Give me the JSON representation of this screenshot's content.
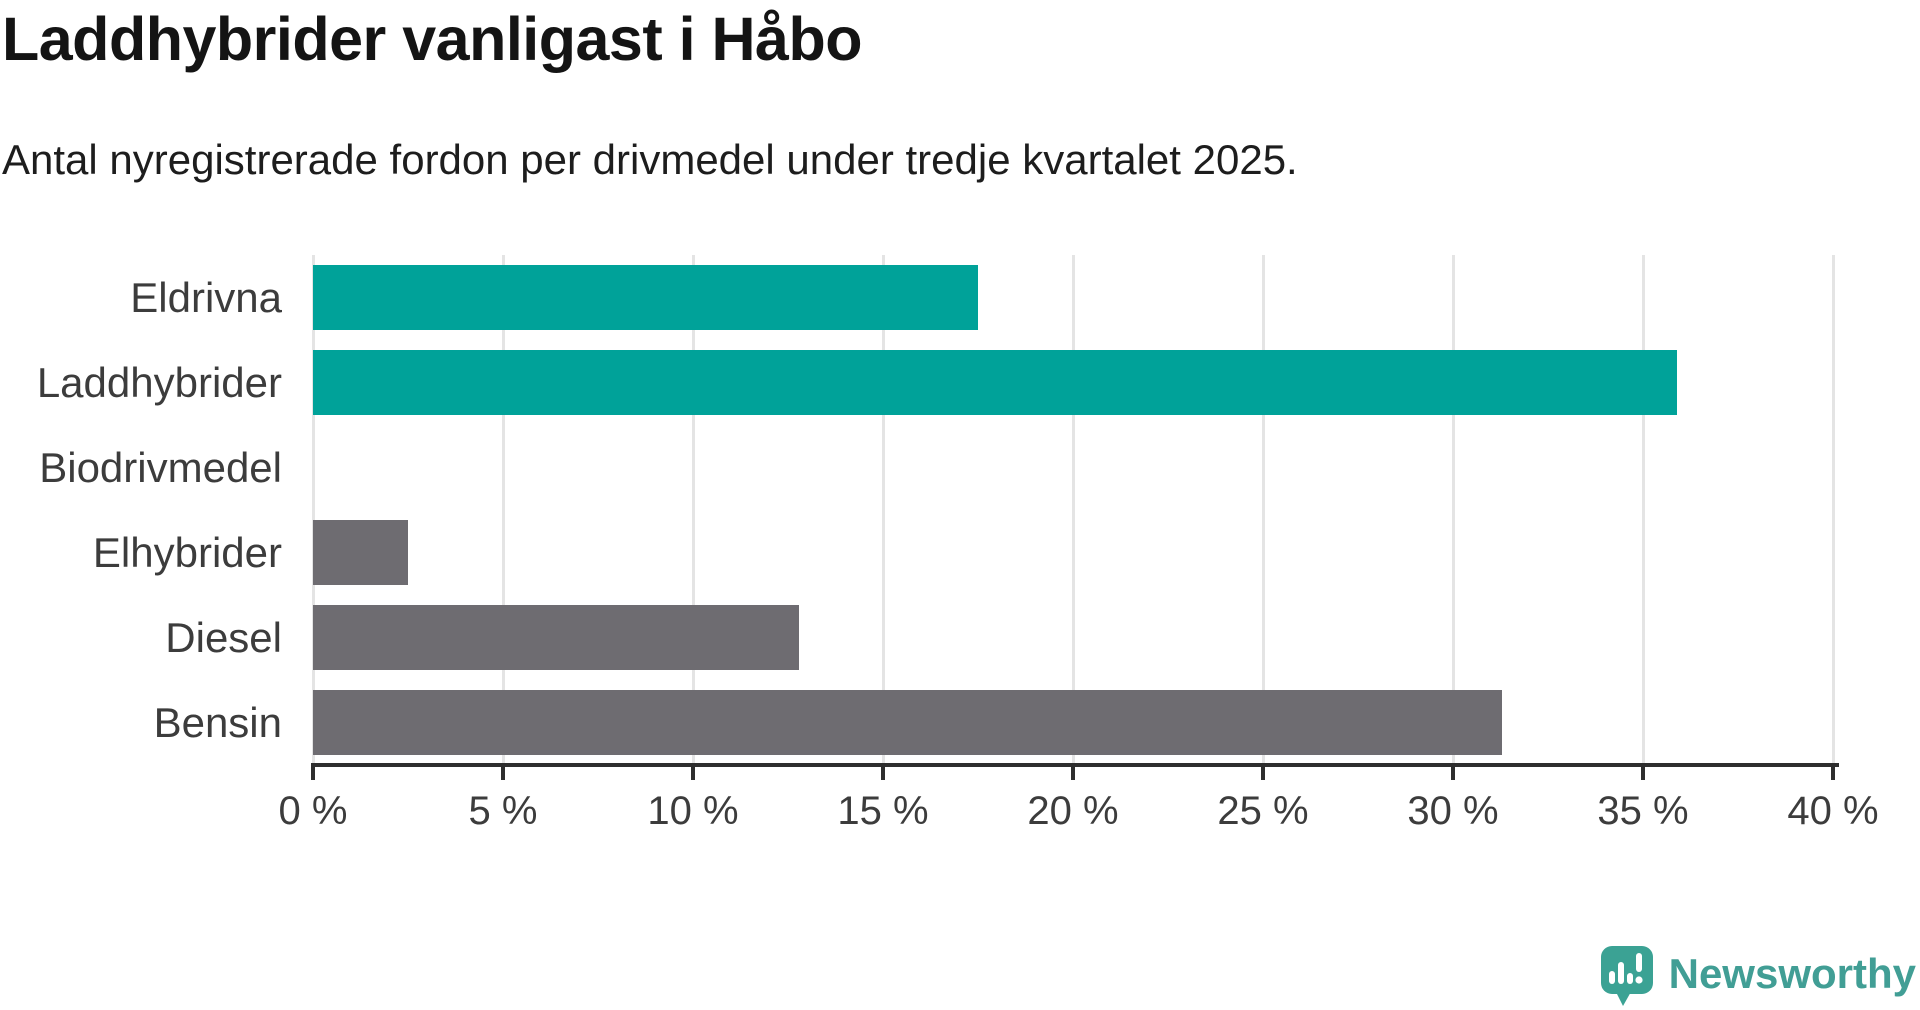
{
  "header": {
    "title": "Laddhybrider vanligast i Håbo",
    "subtitle": "Antal nyregistrerade fordon per drivmedel under tredje kvartalet 2025."
  },
  "chart_data": {
    "type": "bar",
    "orientation": "horizontal",
    "title": "Laddhybrider vanligast i Håbo",
    "subtitle": "Antal nyregistrerade fordon per drivmedel under tredje kvartalet 2025.",
    "categories": [
      "Eldrivna",
      "Laddhybrider",
      "Biodrivmedel",
      "Elhybrider",
      "Diesel",
      "Bensin"
    ],
    "values": [
      17.5,
      35.9,
      0,
      2.5,
      12.8,
      31.3
    ],
    "unit": "%",
    "bar_colors": [
      "#00a299",
      "#00a299",
      "#6e6c71",
      "#6e6c71",
      "#6e6c71",
      "#6e6c71"
    ],
    "highlight_color": "#00a299",
    "default_color": "#6e6c71",
    "xlim": [
      0,
      40
    ],
    "x_ticks": [
      {
        "value": 0,
        "label": "0 %"
      },
      {
        "value": 5,
        "label": "5 %"
      },
      {
        "value": 10,
        "label": "10 %"
      },
      {
        "value": 15,
        "label": "15 %"
      },
      {
        "value": 20,
        "label": "20 %"
      },
      {
        "value": 25,
        "label": "25 %"
      },
      {
        "value": 30,
        "label": "30 %"
      },
      {
        "value": 35,
        "label": "35 %"
      },
      {
        "value": 40,
        "label": "40 %"
      }
    ],
    "grid": true,
    "legend": "none"
  },
  "style": {
    "grid_color": "#e4e4e4",
    "axis_color": "#2e2e2e",
    "label_color": "#3c3c3c",
    "title_color": "#141414"
  },
  "branding": {
    "logo_text": "Newsworthy",
    "logo_text_color": "#419e95",
    "icon_color": "#3ba294",
    "icon_name": "bar-chart-speech-bubble-icon"
  }
}
